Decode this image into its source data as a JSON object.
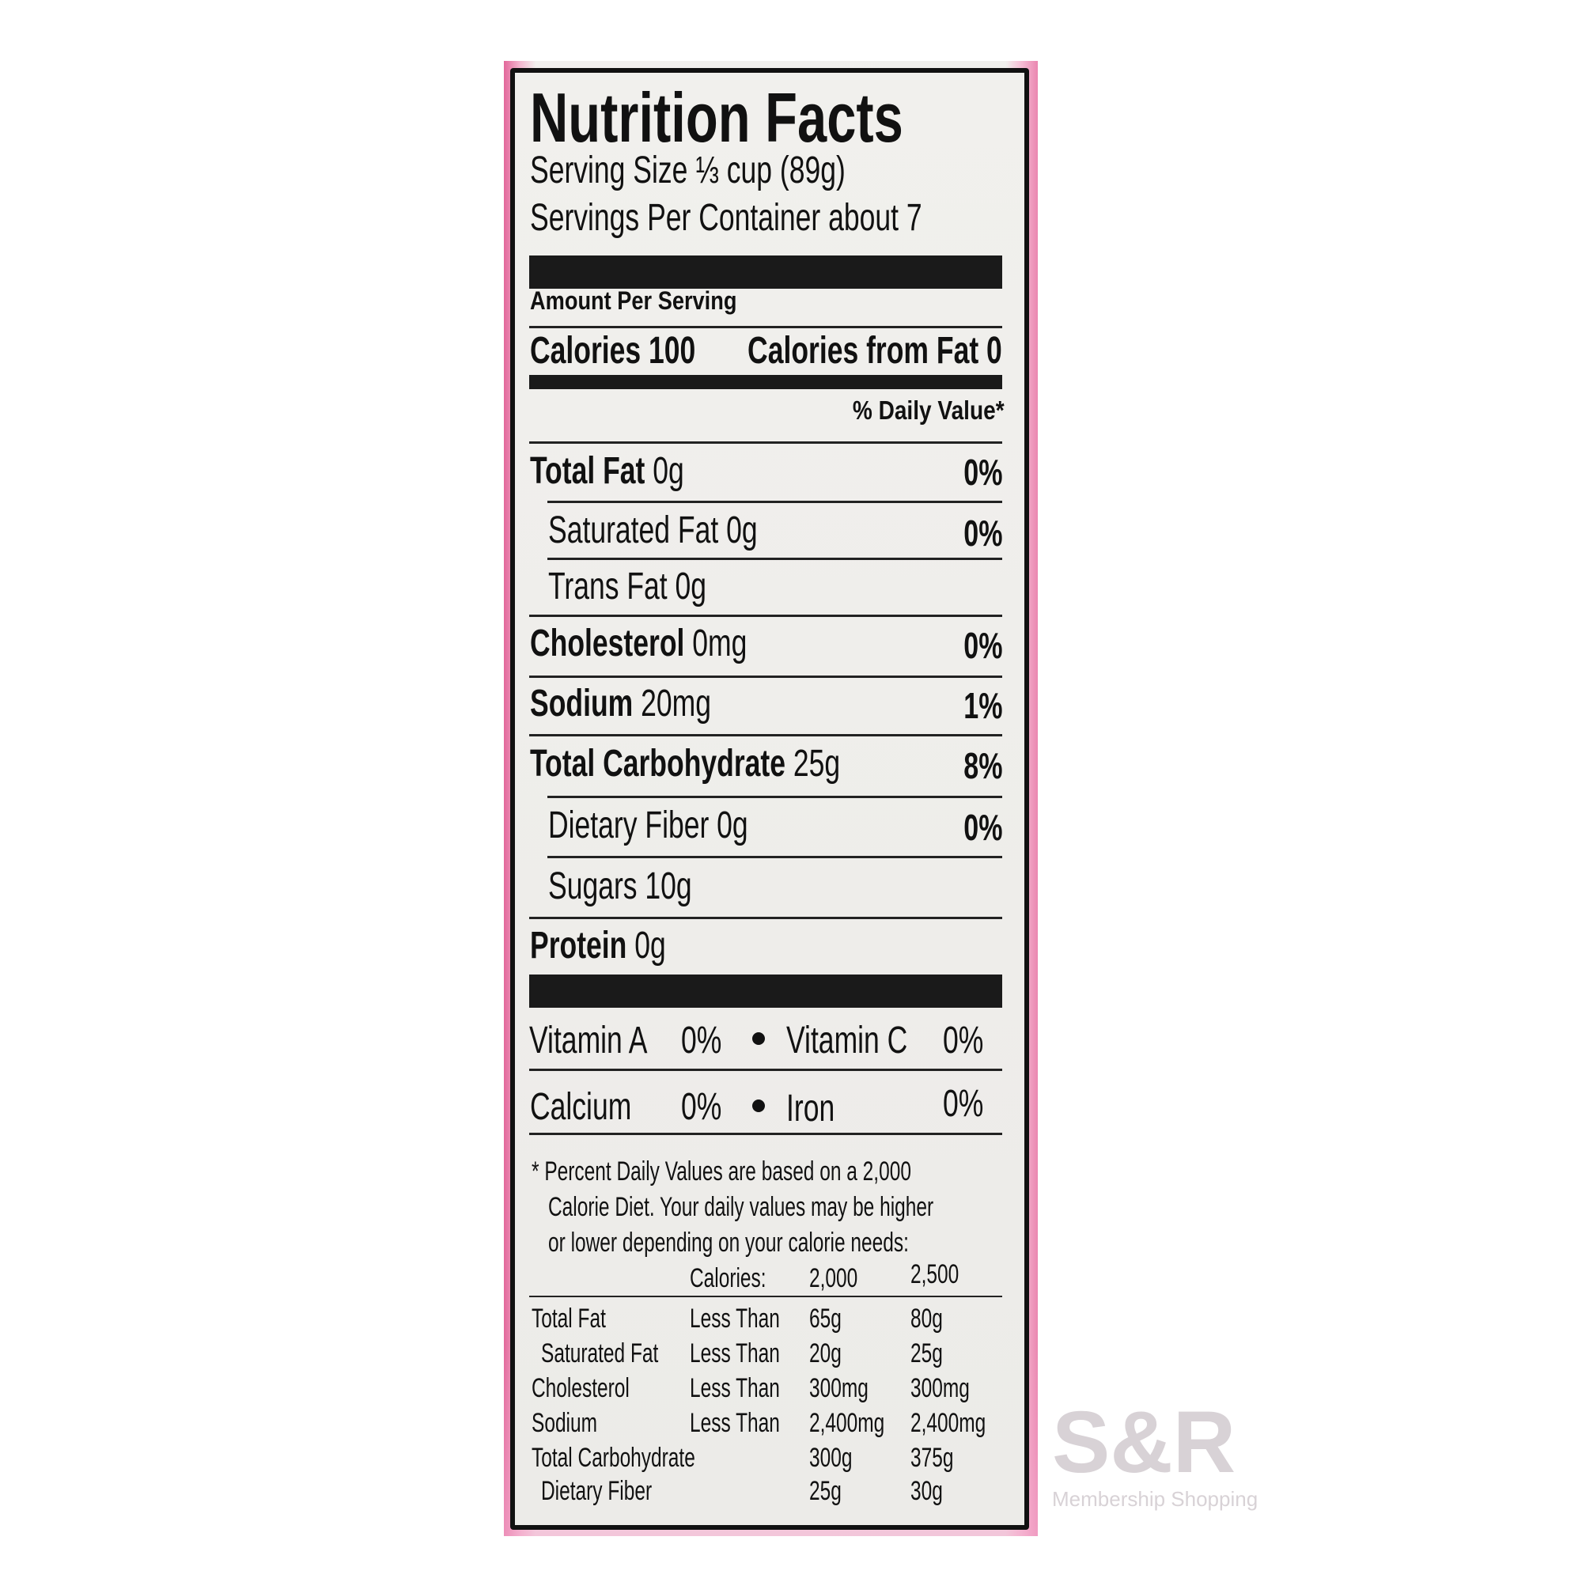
{
  "label": {
    "title": "Nutrition Facts",
    "serving_size": "Serving Size ⅓ cup (89g)",
    "servings_per_container": "Servings Per Container about 7",
    "amount_per_serving": "Amount Per Serving",
    "calories": "Calories 100",
    "calories_from_fat": "Calories from Fat 0",
    "daily_value_header": "% Daily Value*",
    "nutrients": [
      {
        "name": "Total Fat",
        "amount": "0g",
        "dv": "0%"
      },
      {
        "name": "Saturated Fat",
        "amount": "0g",
        "dv": "0%"
      },
      {
        "name": "Trans Fat",
        "amount": "0g",
        "dv": ""
      },
      {
        "name": "Cholesterol",
        "amount": "0mg",
        "dv": "0%"
      },
      {
        "name": "Sodium",
        "amount": "20mg",
        "dv": "1%"
      },
      {
        "name": "Total Carbohydrate",
        "amount": "25g",
        "dv": "8%"
      },
      {
        "name": "Dietary Fiber",
        "amount": "0g",
        "dv": "0%"
      },
      {
        "name": "Sugars",
        "amount": "10g",
        "dv": ""
      },
      {
        "name": "Protein",
        "amount": "0g",
        "dv": ""
      }
    ],
    "vitamins": [
      {
        "name": "Vitamin A",
        "dv": "0%"
      },
      {
        "name": "Vitamin C",
        "dv": "0%"
      },
      {
        "name": "Calcium",
        "dv": "0%"
      },
      {
        "name": "Iron",
        "dv": "0%"
      }
    ],
    "footnote": [
      "* Percent Daily Values are based on a 2,000",
      "Calorie Diet. Your daily values may be higher",
      "or lower depending on your calorie needs:"
    ],
    "reference_table": {
      "header": {
        "label": "Calories:",
        "col1": "2,000",
        "col2": "2,500"
      },
      "rows": [
        {
          "name": "Total Fat",
          "qualifier": "Less Than",
          "col1": "65g",
          "col2": "80g"
        },
        {
          "name": "Saturated Fat",
          "qualifier": "Less Than",
          "col1": "20g",
          "col2": "25g"
        },
        {
          "name": "Cholesterol",
          "qualifier": "Less Than",
          "col1": "300mg",
          "col2": "300mg"
        },
        {
          "name": "Sodium",
          "qualifier": "Less Than",
          "col1": "2,400mg",
          "col2": "2,400mg"
        },
        {
          "name": "Total Carbohydrate",
          "qualifier": "",
          "col1": "300g",
          "col2": "375g"
        },
        {
          "name": "Dietary Fiber",
          "qualifier": "",
          "col1": "25g",
          "col2": "30g"
        }
      ]
    }
  },
  "watermark": {
    "logo": "S&R",
    "tagline": "Membership Shopping"
  },
  "colors": {
    "packaging_pink": "#e2679a",
    "label_bg": "#f0efec",
    "ink": "#111111"
  }
}
